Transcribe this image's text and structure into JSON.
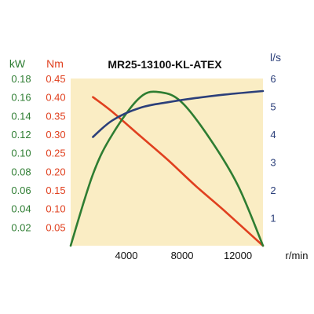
{
  "chart_data": {
    "type": "line",
    "title": "MR25-13100-KL-ATEX",
    "xlabel": "r/min",
    "x_ticks": [
      "4000",
      "8000",
      "12000"
    ],
    "xlim": [
      0,
      13800
    ],
    "axes": {
      "power": {
        "unit": "kW",
        "color": "#2e7d32",
        "ylim": [
          0,
          0.18
        ],
        "ticks": [
          "0.02",
          "0.04",
          "0.06",
          "0.08",
          "0.10",
          "0.12",
          "0.14",
          "0.16",
          "0.18"
        ]
      },
      "torque": {
        "unit": "Nm",
        "color": "#e0401f",
        "ylim": [
          0,
          0.45
        ],
        "ticks": [
          "0.05",
          "0.10",
          "0.15",
          "0.20",
          "0.25",
          "0.30",
          "0.35",
          "0.40",
          "0.45"
        ]
      },
      "current": {
        "unit": "l/s",
        "color": "#2b3f7a",
        "ylim": [
          0,
          6
        ],
        "ticks": [
          "1",
          "2",
          "3",
          "4",
          "5",
          "6"
        ]
      }
    },
    "series": [
      {
        "axis": "torque",
        "color": "#e0401f",
        "x": [
          1600,
          3000,
          5000,
          7000,
          9000,
          11000,
          13800
        ],
        "values": [
          0.4,
          0.36,
          0.295,
          0.23,
          0.16,
          0.095,
          0.0
        ]
      },
      {
        "axis": "power",
        "color": "#2e7d32",
        "x": [
          0,
          1600,
          3000,
          5000,
          6500,
          8000,
          10000,
          12000,
          13800
        ],
        "values": [
          0.0,
          0.077,
          0.12,
          0.16,
          0.165,
          0.154,
          0.115,
          0.065,
          0.0
        ]
      },
      {
        "axis": "current",
        "color": "#2b3f7a",
        "x": [
          1600,
          3000,
          5000,
          7000,
          9000,
          11000,
          13800
        ],
        "values": [
          3.9,
          4.5,
          4.95,
          5.15,
          5.3,
          5.42,
          5.55
        ]
      }
    ],
    "background": "#faedc4",
    "grid": false,
    "legend": "none"
  }
}
